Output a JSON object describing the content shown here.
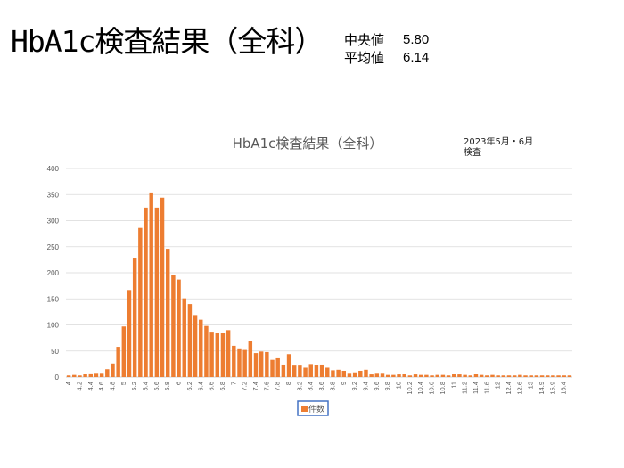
{
  "header": {
    "title": "HbA1c検査結果（全科）",
    "stats": [
      {
        "label": "中央値",
        "value": "5.80"
      },
      {
        "label": "平均値",
        "value": "6.14"
      }
    ]
  },
  "colors": {
    "bar": "#ED7D31",
    "grid": "#d9d9d9",
    "legend_border": "#4472C4"
  },
  "chart_data": {
    "type": "bar",
    "title": "HbA1c検査結果（全科）",
    "note": [
      "2023年5月・6月",
      "検査"
    ],
    "ylim": [
      0,
      400
    ],
    "yticks": [
      0,
      50,
      100,
      150,
      200,
      250,
      300,
      350,
      400
    ],
    "grid": true,
    "legend_position": "bottom",
    "categories": [
      "4",
      "4.1",
      "4.2",
      "4.3",
      "4.4",
      "4.5",
      "4.6",
      "4.7",
      "4.8",
      "4.9",
      "5",
      "5.1",
      "5.2",
      "5.3",
      "5.4",
      "5.5",
      "5.6",
      "5.7",
      "5.8",
      "5.9",
      "6",
      "6.1",
      "6.2",
      "6.3",
      "6.4",
      "6.5",
      "6.6",
      "6.7",
      "6.8",
      "6.9",
      "7",
      "7.1",
      "7.2",
      "7.3",
      "7.4",
      "7.5",
      "7.6",
      "7.7",
      "7.8",
      "7.9",
      "8",
      "8.1",
      "8.2",
      "8.3",
      "8.4",
      "8.5",
      "8.6",
      "8.7",
      "8.8",
      "8.9",
      "9",
      "9.1",
      "9.2",
      "9.3",
      "9.4",
      "9.5",
      "9.6",
      "9.7",
      "9.8",
      "9.9",
      "10",
      "10.1",
      "10.2",
      "10.3",
      "10.4",
      "10.5",
      "10.6",
      "10.7",
      "10.8",
      "10.9",
      "11",
      "11.1",
      "11.2",
      "11.3",
      "11.4",
      "11.5",
      "11.6",
      "11.7",
      "12",
      "12.2",
      "12.4",
      "12.5",
      "12.6",
      "12.8",
      "13",
      "13.5",
      "14.9",
      "15.4",
      "15.9",
      "16.1",
      "16.4",
      "16.9"
    ],
    "series": [
      {
        "name": "件数",
        "values": [
          3,
          4,
          3,
          6,
          7,
          8,
          8,
          15,
          26,
          58,
          97,
          167,
          229,
          286,
          325,
          354,
          325,
          344,
          246,
          195,
          187,
          151,
          140,
          119,
          110,
          98,
          87,
          84,
          85,
          90,
          60,
          55,
          52,
          69,
          46,
          49,
          48,
          33,
          36,
          24,
          44,
          22,
          22,
          18,
          25,
          23,
          24,
          18,
          13,
          14,
          12,
          8,
          9,
          12,
          14,
          5,
          8,
          8,
          4,
          4,
          5,
          6,
          3,
          5,
          4,
          4,
          3,
          4,
          4,
          3,
          6,
          5,
          4,
          3,
          6,
          4,
          3,
          4,
          3,
          3,
          3,
          3,
          4,
          3,
          3,
          3,
          3,
          3,
          3,
          3,
          3,
          3
        ]
      }
    ]
  }
}
